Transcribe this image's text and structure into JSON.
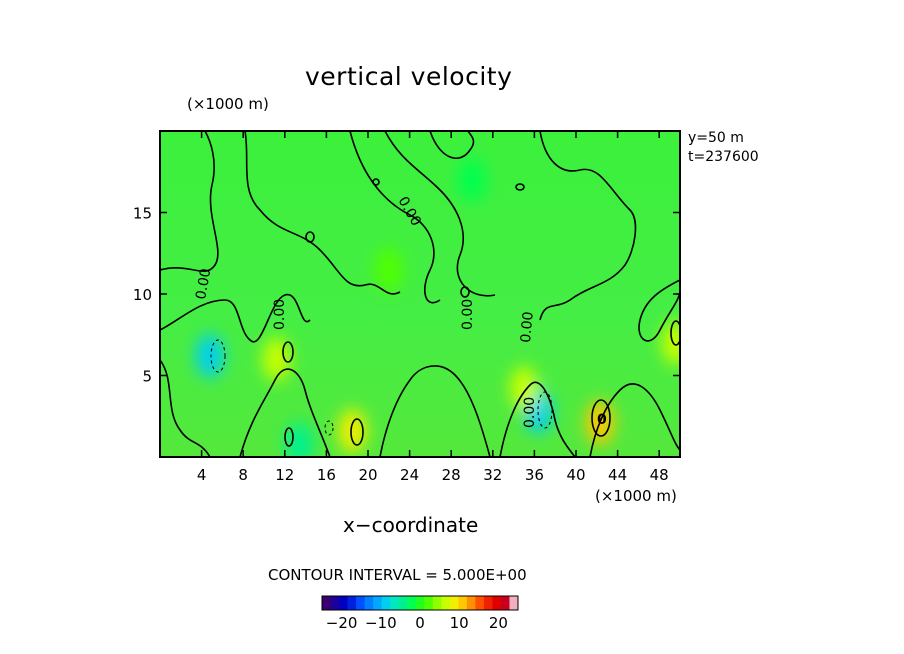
{
  "chart_data": {
    "type": "heatmap",
    "title": "vertical velocity",
    "xlabel": "x−coordinate",
    "x_unit": "(×1000 m)",
    "y_unit": "(×1000 m)",
    "xlim": [
      0,
      50
    ],
    "ylim": [
      0,
      20
    ],
    "x_ticks": [
      4,
      8,
      12,
      16,
      20,
      24,
      28,
      32,
      36,
      40,
      44,
      48
    ],
    "y_ticks": [
      5,
      10,
      15
    ],
    "annotations": [
      "y=50  m",
      "t=237600"
    ],
    "contour_interval_text": "CONTOUR INTERVAL = 5.000E+00",
    "contour_label": "0.00",
    "colorbar": {
      "range": [
        -25,
        25
      ],
      "tick_labels": [
        "−20",
        "−10",
        "0",
        "10",
        "20"
      ],
      "tick_values": [
        -20,
        -10,
        0,
        10,
        20
      ],
      "colors": [
        "#3a0070",
        "#1c0099",
        "#0000c0",
        "#0020e0",
        "#0050ff",
        "#0080ff",
        "#00a8ff",
        "#00d0f0",
        "#00e8c0",
        "#00f090",
        "#00ff50",
        "#20ff20",
        "#50ff00",
        "#90ff00",
        "#c8ff00",
        "#f0f000",
        "#ffc800",
        "#ff9000",
        "#ff5000",
        "#f02000",
        "#e00000",
        "#c80020",
        "#f0b0c0"
      ]
    },
    "field_summary": "Field mostly near 0 (green) with localized updrafts up to about 10 and downdrafts near -10",
    "cells": [
      {
        "x": 18.5,
        "y": 1.6,
        "value": 9
      },
      {
        "x": 42.3,
        "y": 2.1,
        "value": 10
      },
      {
        "x": 11.2,
        "y": 6.0,
        "value": 7
      },
      {
        "x": 49.6,
        "y": 7.0,
        "value": 6
      },
      {
        "x": 4.8,
        "y": 6.2,
        "value": -8
      },
      {
        "x": 36.4,
        "y": 2.8,
        "value": -9
      },
      {
        "x": 13.4,
        "y": 0.8,
        "value": -4
      },
      {
        "x": 35.0,
        "y": 4.2,
        "value": 6
      },
      {
        "x": 22.0,
        "y": 11.5,
        "value": 3
      },
      {
        "x": 30.0,
        "y": 17.0,
        "value": -2
      }
    ]
  }
}
